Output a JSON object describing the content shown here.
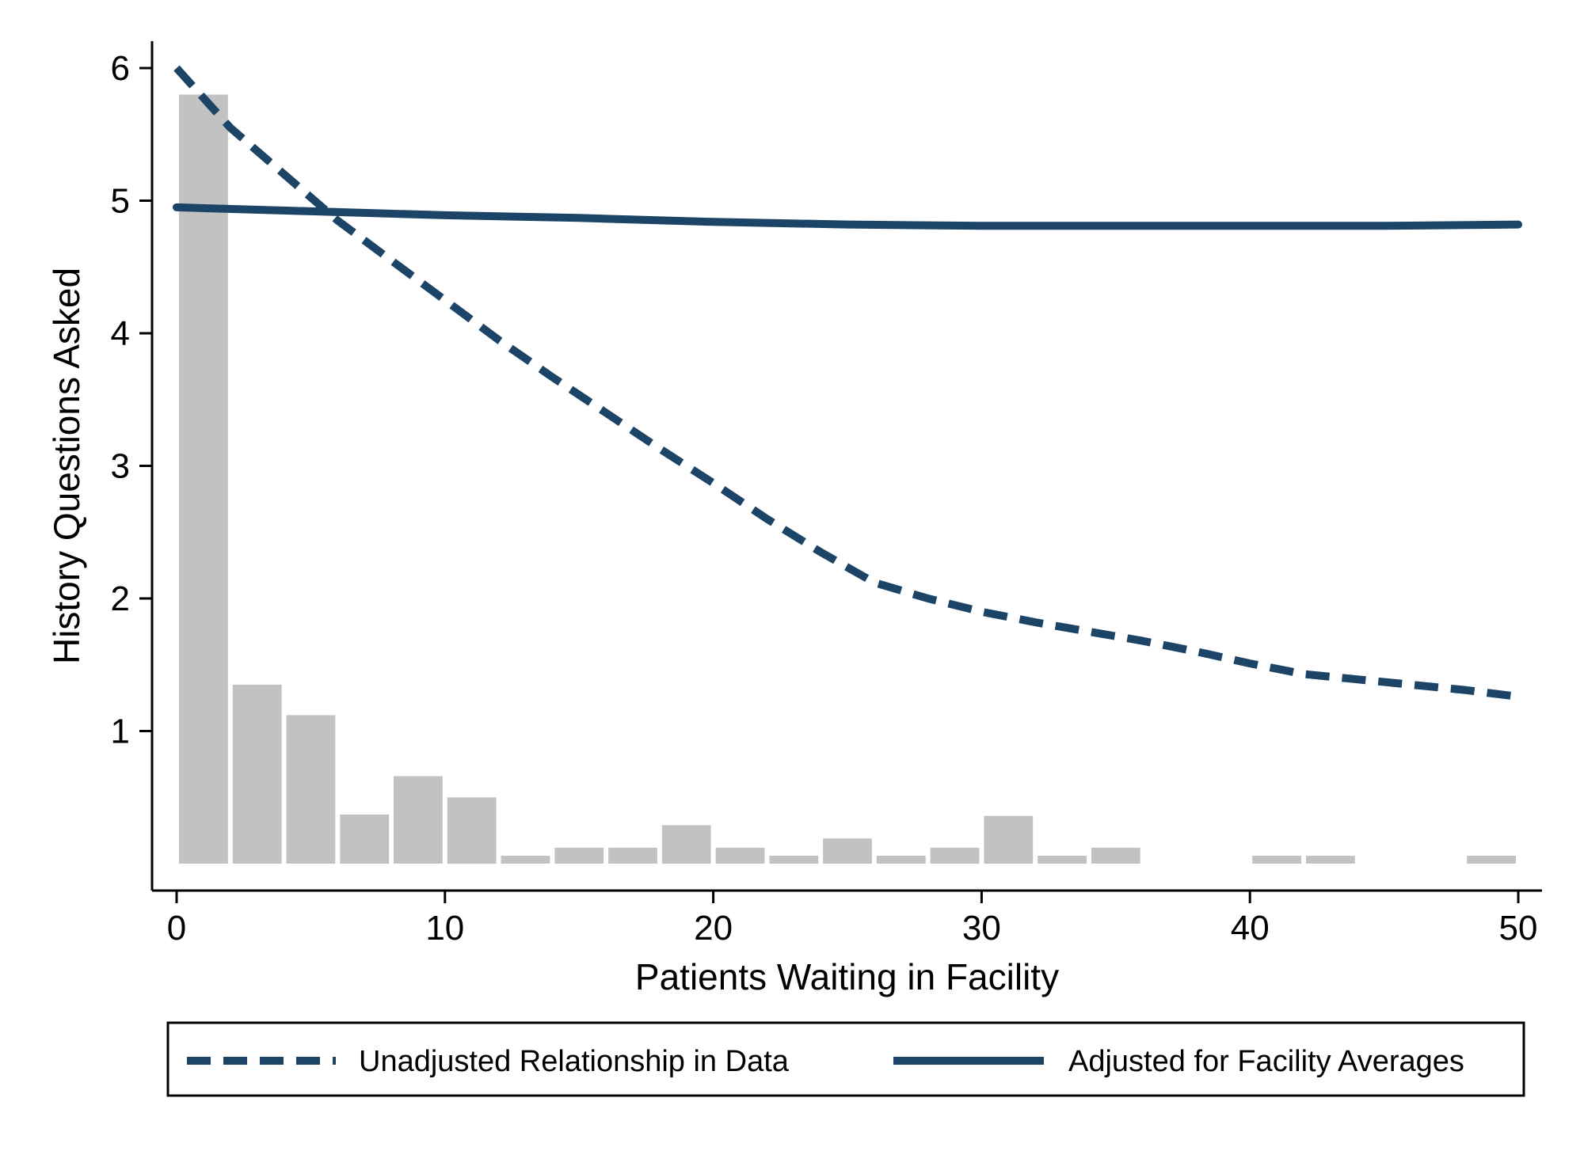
{
  "colors": {
    "line": "#1c4466",
    "bar": "#c2c2c2",
    "axis": "#000000",
    "background": "#ffffff"
  },
  "chart_data": {
    "type": "line",
    "title": "",
    "xlabel": "Patients Waiting in Facility",
    "ylabel": "History Questions Asked",
    "xlim": [
      0,
      50
    ],
    "ylim": [
      0,
      6
    ],
    "x_ticks": [
      0,
      10,
      20,
      30,
      40,
      50
    ],
    "y_ticks": [
      1,
      2,
      3,
      4,
      5,
      6
    ],
    "grid": false,
    "legend_position": "bottom",
    "histogram": {
      "bin_width": 2,
      "bins": [
        {
          "x0": 0,
          "height": 5.8
        },
        {
          "x0": 2,
          "height": 1.35
        },
        {
          "x0": 4,
          "height": 1.12
        },
        {
          "x0": 6,
          "height": 0.37
        },
        {
          "x0": 8,
          "height": 0.66
        },
        {
          "x0": 10,
          "height": 0.5
        },
        {
          "x0": 12,
          "height": 0.06
        },
        {
          "x0": 14,
          "height": 0.12
        },
        {
          "x0": 16,
          "height": 0.12
        },
        {
          "x0": 18,
          "height": 0.29
        },
        {
          "x0": 20,
          "height": 0.12
        },
        {
          "x0": 22,
          "height": 0.06
        },
        {
          "x0": 24,
          "height": 0.19
        },
        {
          "x0": 26,
          "height": 0.06
        },
        {
          "x0": 28,
          "height": 0.12
        },
        {
          "x0": 30,
          "height": 0.36
        },
        {
          "x0": 32,
          "height": 0.06
        },
        {
          "x0": 34,
          "height": 0.12
        },
        {
          "x0": 40,
          "height": 0.06
        },
        {
          "x0": 42,
          "height": 0.06
        },
        {
          "x0": 48,
          "height": 0.06
        }
      ]
    },
    "series": [
      {
        "name": "Unadjusted Relationship in Data",
        "style": "dashed",
        "points": [
          [
            0,
            6.0
          ],
          [
            2,
            5.55
          ],
          [
            4,
            5.2
          ],
          [
            6,
            4.85
          ],
          [
            8,
            4.55
          ],
          [
            10,
            4.25
          ],
          [
            12,
            3.95
          ],
          [
            14,
            3.67
          ],
          [
            16,
            3.4
          ],
          [
            18,
            3.13
          ],
          [
            20,
            2.87
          ],
          [
            22,
            2.6
          ],
          [
            24,
            2.35
          ],
          [
            26,
            2.12
          ],
          [
            28,
            2.0
          ],
          [
            30,
            1.9
          ],
          [
            32,
            1.82
          ],
          [
            34,
            1.75
          ],
          [
            36,
            1.68
          ],
          [
            38,
            1.6
          ],
          [
            40,
            1.51
          ],
          [
            42,
            1.43
          ],
          [
            44,
            1.39
          ],
          [
            46,
            1.35
          ],
          [
            48,
            1.31
          ],
          [
            50,
            1.26
          ]
        ]
      },
      {
        "name": "Adjusted for Facility Averages",
        "style": "solid",
        "points": [
          [
            0,
            4.95
          ],
          [
            5,
            4.92
          ],
          [
            10,
            4.89
          ],
          [
            15,
            4.87
          ],
          [
            20,
            4.84
          ],
          [
            25,
            4.82
          ],
          [
            30,
            4.81
          ],
          [
            35,
            4.81
          ],
          [
            40,
            4.81
          ],
          [
            45,
            4.81
          ],
          [
            50,
            4.82
          ]
        ]
      }
    ]
  }
}
